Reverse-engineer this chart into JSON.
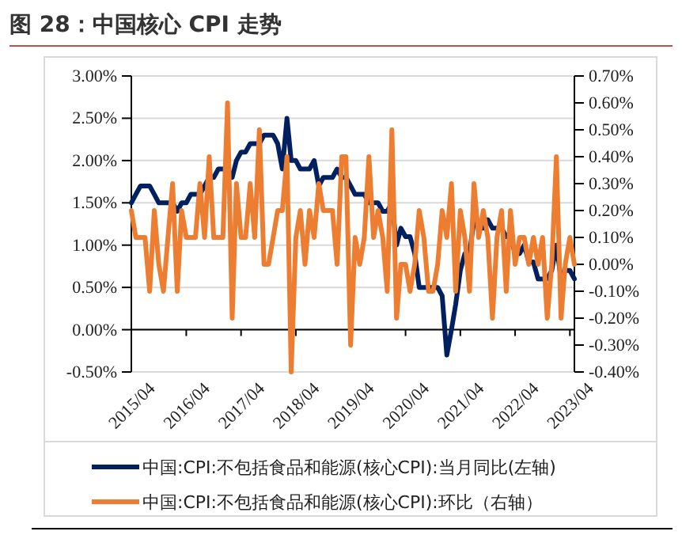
{
  "chart_data": {
    "type": "line",
    "title": "图 28：中国核心 CPI 走势",
    "x": [
      "2015-04",
      "2015-05",
      "2015-06",
      "2015-07",
      "2015-08",
      "2015-09",
      "2015-10",
      "2015-11",
      "2015-12",
      "2016-01",
      "2016-02",
      "2016-03",
      "2016-04",
      "2016-05",
      "2016-06",
      "2016-07",
      "2016-08",
      "2016-09",
      "2016-10",
      "2016-11",
      "2016-12",
      "2017-01",
      "2017-02",
      "2017-03",
      "2017-04",
      "2017-05",
      "2017-06",
      "2017-07",
      "2017-08",
      "2017-09",
      "2017-10",
      "2017-11",
      "2017-12",
      "2018-01",
      "2018-02",
      "2018-03",
      "2018-04",
      "2018-05",
      "2018-06",
      "2018-07",
      "2018-08",
      "2018-09",
      "2018-10",
      "2018-11",
      "2018-12",
      "2019-01",
      "2019-02",
      "2019-03",
      "2019-04",
      "2019-05",
      "2019-06",
      "2019-07",
      "2019-08",
      "2019-09",
      "2019-10",
      "2019-11",
      "2019-12",
      "2020-01",
      "2020-02",
      "2020-03",
      "2020-04",
      "2020-05",
      "2020-06",
      "2020-07",
      "2020-08",
      "2020-09",
      "2020-10",
      "2020-11",
      "2020-12",
      "2021-01",
      "2021-02",
      "2021-03",
      "2021-04",
      "2021-05",
      "2021-06",
      "2021-07",
      "2021-08",
      "2021-09",
      "2021-10",
      "2021-11",
      "2021-12",
      "2022-01",
      "2022-02",
      "2022-03",
      "2022-04",
      "2022-05",
      "2022-06",
      "2022-07",
      "2022-08",
      "2022-09",
      "2022-10",
      "2022-11",
      "2022-12",
      "2023-01",
      "2023-02",
      "2023-03",
      "2023-04",
      "2023-05"
    ],
    "xlim": [
      "2015-04",
      "2023-05"
    ],
    "xticks": [
      {
        "value": "2015-04",
        "label": "2015/04"
      },
      {
        "value": "2016-04",
        "label": "2016/04"
      },
      {
        "value": "2017-04",
        "label": "2017/04"
      },
      {
        "value": "2018-04",
        "label": "2018/04"
      },
      {
        "value": "2019-04",
        "label": "2019/04"
      },
      {
        "value": "2020-04",
        "label": "2020/04"
      },
      {
        "value": "2021-04",
        "label": "2021/04"
      },
      {
        "value": "2022-04",
        "label": "2022/04"
      },
      {
        "value": "2023-04",
        "label": "2023/04"
      }
    ],
    "ylim": [
      -0.5,
      3.0
    ],
    "yticks": [
      {
        "value": -0.5,
        "label": "-0.50%"
      },
      {
        "value": 0,
        "label": "0.00%"
      },
      {
        "value": 0.5,
        "label": "0.50%"
      },
      {
        "value": 1,
        "label": "1.00%"
      },
      {
        "value": 1.5,
        "label": "1.50%"
      },
      {
        "value": 2,
        "label": "2.00%"
      },
      {
        "value": 2.5,
        "label": "2.50%"
      },
      {
        "value": 3,
        "label": "3.00%"
      }
    ],
    "y2lim": [
      -0.4,
      0.7
    ],
    "y2ticks": [
      {
        "value": -0.4,
        "label": "-0.40%"
      },
      {
        "value": -0.3,
        "label": "-0.30%"
      },
      {
        "value": -0.2,
        "label": "-0.20%"
      },
      {
        "value": -0.1,
        "label": "-0.10%"
      },
      {
        "value": 0,
        "label": "0.00%"
      },
      {
        "value": 0.1,
        "label": "0.10%"
      },
      {
        "value": 0.2,
        "label": "0.20%"
      },
      {
        "value": 0.3,
        "label": "0.30%"
      },
      {
        "value": 0.4,
        "label": "0.40%"
      },
      {
        "value": 0.5,
        "label": "0.50%"
      },
      {
        "value": 0.6,
        "label": "0.60%"
      },
      {
        "value": 0.7,
        "label": "0.70%"
      }
    ],
    "grid": "y",
    "legend": "bottom",
    "marker": "none",
    "line_style": "solid",
    "series": [
      {
        "name": "中国:CPI:不包括食品和能源(核心CPI):当月同比(左轴)",
        "color": "#002060",
        "values": [
          1.5,
          1.6,
          1.7,
          1.7,
          1.7,
          1.6,
          1.5,
          1.5,
          1.5,
          1.5,
          1.4,
          1.5,
          1.5,
          1.6,
          1.6,
          1.6,
          1.7,
          1.8,
          1.8,
          1.9,
          1.9,
          1.9,
          1.8,
          2.0,
          2.1,
          2.1,
          2.2,
          2.2,
          2.2,
          2.3,
          2.3,
          2.3,
          2.2,
          1.9,
          2.5,
          2.0,
          2.0,
          1.9,
          1.9,
          1.9,
          2.0,
          1.7,
          1.8,
          1.8,
          1.8,
          1.9,
          1.8,
          1.8,
          1.7,
          1.6,
          1.6,
          1.6,
          1.5,
          1.5,
          1.5,
          1.4,
          1.4,
          1.5,
          1.0,
          1.2,
          1.1,
          1.1,
          0.9,
          0.5,
          0.5,
          0.5,
          0.5,
          0.5,
          0.4,
          -0.3,
          0.0,
          0.3,
          0.7,
          0.9,
          0.9,
          1.3,
          1.2,
          1.2,
          1.3,
          1.2,
          1.2,
          1.2,
          1.1,
          1.1,
          0.9,
          0.9,
          1.0,
          0.8,
          0.8,
          0.6,
          0.6,
          0.6,
          0.7,
          1.0,
          0.6,
          0.7,
          0.7,
          0.6
        ]
      },
      {
        "name": "中国:CPI:不包括食品和能源(核心CPI):环比（右轴）",
        "color": "#ed7d31",
        "axis": "y2",
        "values": [
          0.2,
          0.1,
          0.1,
          0.1,
          -0.1,
          0.2,
          0.0,
          -0.1,
          0.1,
          0.3,
          -0.1,
          0.2,
          0.1,
          0.1,
          0.1,
          0.3,
          0.1,
          0.4,
          0.1,
          0.1,
          0.1,
          0.6,
          -0.2,
          0.3,
          0.1,
          0.1,
          0.3,
          0.1,
          0.5,
          0.0,
          0.0,
          0.1,
          0.2,
          0.2,
          0.4,
          -0.4,
          0.1,
          0.2,
          0.0,
          0.2,
          0.1,
          0.3,
          0.2,
          0.2,
          0.2,
          0.0,
          0.4,
          0.4,
          -0.3,
          0.1,
          0.0,
          0.1,
          0.4,
          0.1,
          0.2,
          0.1,
          -0.1,
          0.5,
          -0.2,
          0.0,
          0.0,
          -0.1,
          0.0,
          0.2,
          0.1,
          -0.1,
          -0.1,
          0.0,
          0.2,
          0.1,
          0.3,
          -0.1,
          0.2,
          0.1,
          -0.1,
          0.3,
          0.1,
          0.2,
          0.1,
          -0.2,
          0.1,
          0.2,
          -0.1,
          0.2,
          0.0,
          0.1,
          0.1,
          0.0,
          0.1,
          0.0,
          0.1,
          -0.2,
          0.0,
          0.4,
          -0.2,
          0.0,
          0.1,
          0.0
        ]
      }
    ]
  }
}
